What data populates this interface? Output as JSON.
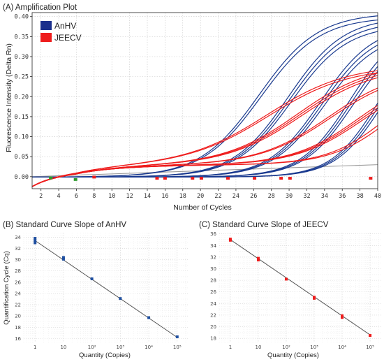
{
  "chart_data": [
    {
      "id": "A",
      "type": "line",
      "title": "(A) Amplification Plot",
      "xlabel": "Number of Cycles",
      "ylabel": "Fluorescence Intensity (Delta Rn)",
      "xlim": [
        1,
        40
      ],
      "ylim": [
        -0.03,
        0.41
      ],
      "xticks": [
        2,
        4,
        6,
        8,
        10,
        12,
        14,
        16,
        18,
        20,
        22,
        24,
        26,
        28,
        30,
        32,
        34,
        36,
        38,
        40
      ],
      "yticks": [
        0.0,
        0.05,
        0.1,
        0.15,
        0.2,
        0.25,
        0.3,
        0.35,
        0.4
      ],
      "ytick_labels": [
        "0.00",
        "0.05",
        "0.10",
        "0.15",
        "0.20",
        "0.25",
        "0.30",
        "0.35",
        "0.40"
      ],
      "grid": true,
      "legend": {
        "position": "top-left",
        "entries": [
          {
            "name": "AnHV",
            "color": "#1a2f8c"
          },
          {
            "name": "JEECV",
            "color": "#ee1c1c"
          }
        ]
      },
      "threshold": {
        "y_start": 0.0,
        "y_end": 0.03,
        "color": "#999999"
      },
      "series": [
        {
          "name": "AnHV",
          "color": "#1a3a8f",
          "curves": [
            {
              "ct": 26.6,
              "plateau": 0.41,
              "k": 0.3
            },
            {
              "ct": 26.8,
              "plateau": 0.4,
              "k": 0.3
            },
            {
              "ct": 29.9,
              "plateau": 0.4,
              "k": 0.32
            },
            {
              "ct": 30.1,
              "plateau": 0.39,
              "k": 0.32
            },
            {
              "ct": 30.3,
              "plateau": 0.38,
              "k": 0.32
            },
            {
              "ct": 33.6,
              "plateau": 0.38,
              "k": 0.34
            },
            {
              "ct": 33.8,
              "plateau": 0.37,
              "k": 0.34
            },
            {
              "ct": 34.0,
              "plateau": 0.36,
              "k": 0.34
            },
            {
              "ct": 36.8,
              "plateau": 0.38,
              "k": 0.36
            },
            {
              "ct": 37.0,
              "plateau": 0.37,
              "k": 0.36
            },
            {
              "ct": 37.2,
              "plateau": 0.36,
              "k": 0.36
            },
            {
              "ct": 40.0,
              "plateau": 0.37,
              "k": 0.38
            },
            {
              "ct": 40.2,
              "plateau": 0.36,
              "k": 0.38
            },
            {
              "ct": 40.4,
              "plateau": 0.35,
              "k": 0.38
            }
          ]
        },
        {
          "name": "JEECV",
          "color": "#ee1c1c",
          "curves": [
            {
              "ct": 27.5,
              "plateau": 0.25,
              "k": 0.22
            },
            {
              "ct": 27.7,
              "plateau": 0.245,
              "k": 0.22
            },
            {
              "ct": 31.0,
              "plateau": 0.255,
              "k": 0.24
            },
            {
              "ct": 31.2,
              "plateau": 0.25,
              "k": 0.24
            },
            {
              "ct": 31.4,
              "plateau": 0.245,
              "k": 0.24
            },
            {
              "ct": 34.5,
              "plateau": 0.24,
              "k": 0.25
            },
            {
              "ct": 34.7,
              "plateau": 0.235,
              "k": 0.25
            },
            {
              "ct": 37.8,
              "plateau": 0.23,
              "k": 0.27
            },
            {
              "ct": 38.0,
              "plateau": 0.225,
              "k": 0.27
            },
            {
              "ct": 38.2,
              "plateau": 0.22,
              "k": 0.27
            },
            {
              "ct": 41.0,
              "plateau": 0.23,
              "k": 0.3
            },
            {
              "ct": 41.3,
              "plateau": 0.22,
              "k": 0.3
            }
          ]
        }
      ],
      "markers": [
        {
          "x": 3.1,
          "y": -0.003,
          "color": "#2a9a2a"
        },
        {
          "x": 5.9,
          "y": -0.007,
          "color": "#2a9a2a"
        },
        {
          "x": 8.0,
          "y": -0.001,
          "color": "#ee1c1c"
        },
        {
          "x": 15.1,
          "y": -0.004,
          "color": "#ee1c1c"
        },
        {
          "x": 16.0,
          "y": -0.004,
          "color": "#ee1c1c"
        },
        {
          "x": 19.1,
          "y": -0.004,
          "color": "#ee1c1c"
        },
        {
          "x": 20.1,
          "y": -0.004,
          "color": "#ee1c1c"
        },
        {
          "x": 23.1,
          "y": -0.004,
          "color": "#ee1c1c"
        },
        {
          "x": 26.1,
          "y": -0.004,
          "color": "#ee1c1c"
        },
        {
          "x": 29.1,
          "y": -0.004,
          "color": "#ee1c1c"
        },
        {
          "x": 30.1,
          "y": -0.004,
          "color": "#ee1c1c"
        },
        {
          "x": 39.2,
          "y": -0.004,
          "color": "#ee1c1c"
        }
      ]
    },
    {
      "id": "B",
      "type": "scatter",
      "title": "(B) Standard Curve Slope of AnHV",
      "xlabel": "Quantity (Copies)",
      "ylabel": "Quantification Cycle (Cq)",
      "x_scale": "log",
      "xlim": [
        0.4,
        250000
      ],
      "ylim": [
        15.3,
        34.8
      ],
      "xticks": [
        1,
        10,
        100,
        1000,
        10000,
        100000
      ],
      "xtick_labels": [
        "1",
        "10",
        "10²",
        "10³",
        "10⁴",
        "10⁵"
      ],
      "yticks": [
        16,
        18,
        20,
        22,
        24,
        26,
        28,
        30,
        32,
        34
      ],
      "grid": true,
      "line_color": "#555555",
      "fit_line": {
        "x": [
          1,
          100000
        ],
        "y": [
          33.4,
          16.2
        ]
      },
      "marker_color": "#1f4fa0",
      "points": [
        {
          "x": 1,
          "y": 33.0
        },
        {
          "x": 1,
          "y": 33.4
        },
        {
          "x": 1,
          "y": 33.8
        },
        {
          "x": 10,
          "y": 30.1
        },
        {
          "x": 10,
          "y": 30.4
        },
        {
          "x": 100,
          "y": 26.6
        },
        {
          "x": 1000,
          "y": 23.1
        },
        {
          "x": 10000,
          "y": 19.7
        },
        {
          "x": 100000,
          "y": 16.3
        }
      ]
    },
    {
      "id": "C",
      "type": "scatter",
      "title": "(C) Standard Curve Slope of JEECV",
      "xlabel": "Quantity (Copies)",
      "ylabel": "",
      "x_scale": "log",
      "xlim": [
        0.4,
        250000
      ],
      "ylim": [
        17.3,
        36.2
      ],
      "xticks": [
        1,
        10,
        100,
        1000,
        10000,
        100000
      ],
      "xtick_labels": [
        "1",
        "10",
        "10²",
        "10³",
        "10⁴",
        "10⁵"
      ],
      "yticks": [
        18,
        20,
        22,
        24,
        26,
        28,
        30,
        32,
        34,
        36
      ],
      "grid": true,
      "line_color": "#555555",
      "fit_line": {
        "x": [
          1,
          100000
        ],
        "y": [
          35.0,
          18.6
        ]
      },
      "marker_color": "#ee1c1c",
      "points": [
        {
          "x": 1,
          "y": 34.9
        },
        {
          "x": 1,
          "y": 35.1
        },
        {
          "x": 10,
          "y": 31.5
        },
        {
          "x": 10,
          "y": 31.8
        },
        {
          "x": 100,
          "y": 28.2
        },
        {
          "x": 1000,
          "y": 24.9
        },
        {
          "x": 1000,
          "y": 25.1
        },
        {
          "x": 10000,
          "y": 21.6
        },
        {
          "x": 10000,
          "y": 21.9
        },
        {
          "x": 100000,
          "y": 18.5
        }
      ]
    }
  ]
}
